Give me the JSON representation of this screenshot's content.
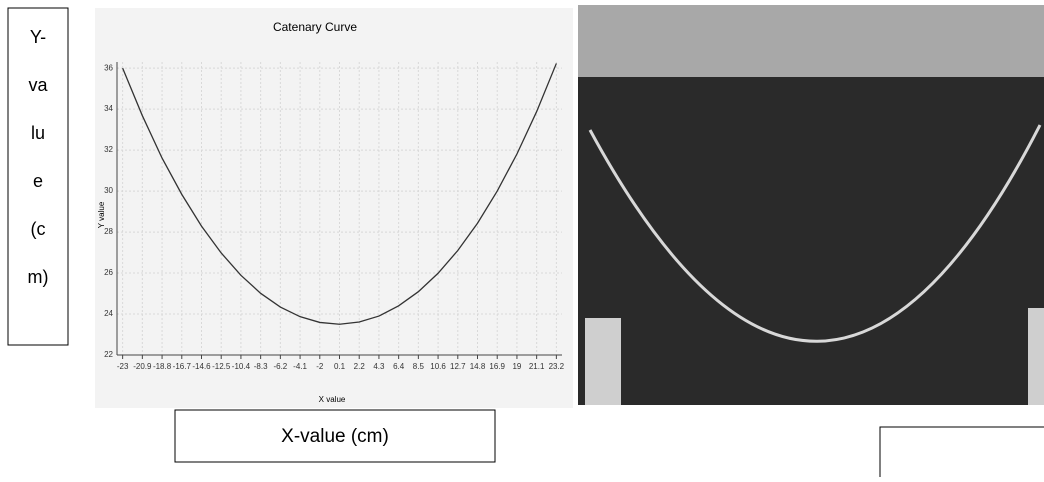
{
  "chart_data": {
    "type": "line",
    "title": "Catenary Curve",
    "x_label": "X value",
    "y_label": "Y value",
    "outer_y_label": [
      "Y-",
      "va",
      "lu",
      "e",
      "(c",
      "m)"
    ],
    "outer_x_label": "X-value (cm)",
    "x": [
      -23,
      -20.9,
      -18.8,
      -16.7,
      -14.6,
      -12.5,
      -10.4,
      -8.3,
      -6.2,
      -4.1,
      -2,
      0.1,
      2.2,
      4.3,
      6.4,
      8.5,
      10.6,
      12.7,
      14.8,
      16.9,
      19,
      21.1,
      23.2
    ],
    "series": [
      {
        "name": "Y value",
        "color": "#333333",
        "values": [
          36.0,
          33.68,
          31.61,
          29.84,
          28.29,
          26.98,
          25.89,
          25.01,
          24.34,
          23.87,
          23.59,
          23.5,
          23.61,
          23.9,
          24.4,
          25.09,
          25.99,
          27.1,
          28.43,
          30.0,
          31.81,
          33.88,
          36.23
        ]
      }
    ],
    "xlim": [
      -23.6,
      23.8
    ],
    "ylim": [
      22,
      36.3
    ],
    "xticks": [
      -23,
      -20.9,
      -18.8,
      -16.7,
      -14.6,
      -12.5,
      -10.4,
      -8.3,
      -6.2,
      -4.1,
      -2,
      0.1,
      2.2,
      4.3,
      6.4,
      8.5,
      10.6,
      12.7,
      14.8,
      16.9,
      19,
      21.1,
      23.2
    ],
    "yticks": [
      22,
      24,
      26,
      28,
      30,
      32,
      34,
      36
    ],
    "grid": true
  }
}
